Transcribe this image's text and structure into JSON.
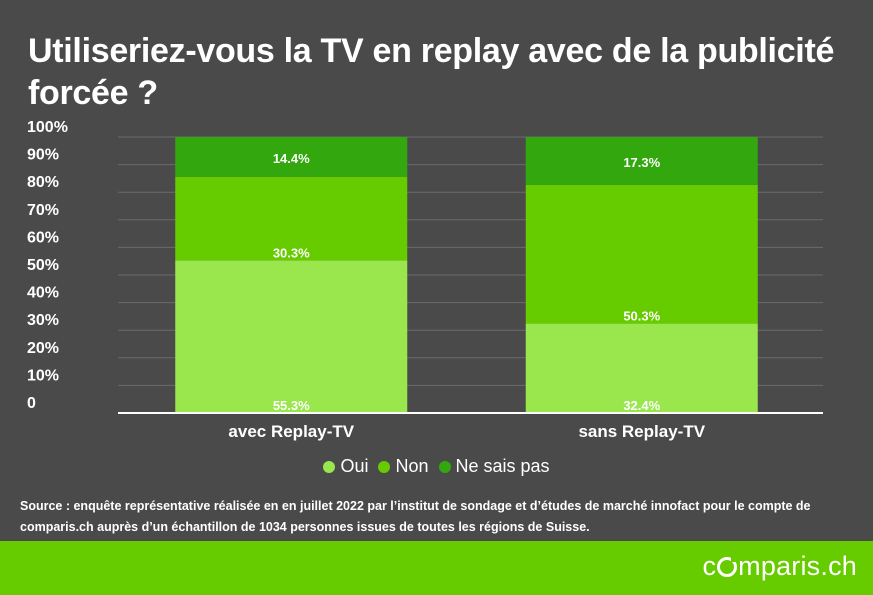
{
  "title": "Utiliseriez-vous la TV en replay avec de la publicité forcée ?",
  "chart_data": {
    "type": "bar",
    "stacked": true,
    "categories": [
      "avec Replay-TV",
      "sans Replay-TV"
    ],
    "series": [
      {
        "name": "Oui",
        "values": [
          55.3,
          32.4
        ],
        "labels": [
          "55.3%",
          "32.4%"
        ],
        "color": "#99e64d"
      },
      {
        "name": "Non",
        "values": [
          30.3,
          50.3
        ],
        "labels": [
          "30.3%",
          "50.3%"
        ],
        "color": "#66cc00"
      },
      {
        "name": "Ne sais pas",
        "values": [
          14.4,
          17.3
        ],
        "labels": [
          "14.4%",
          "17.3%"
        ],
        "color": "#33a80e"
      }
    ],
    "ylim": [
      0,
      100
    ],
    "yticks": [
      0,
      10,
      20,
      30,
      40,
      50,
      60,
      70,
      80,
      90,
      100
    ],
    "ytick_labels": [
      "0",
      "10%",
      "20%",
      "30%",
      "40%",
      "50%",
      "60%",
      "70%",
      "80%",
      "90%",
      "100%"
    ],
    "grid": true,
    "legend_position": "bottom"
  },
  "source": "Source : enquête représentative réalisée en en juillet 2022 par l’institut de sondage et d’études de marché innofact pour le compte de comparis.ch auprès d’un échantillon de 1034 personnes issues de toutes les régions de Suisse.",
  "logo": {
    "pre": "c",
    "post": "mparis.ch"
  }
}
